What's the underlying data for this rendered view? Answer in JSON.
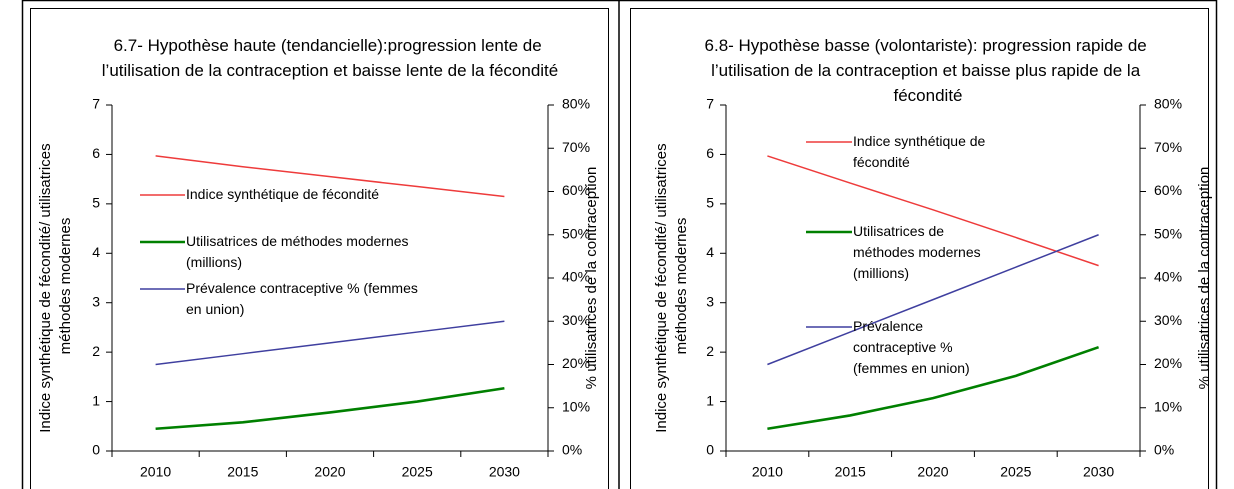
{
  "chart_data": [
    {
      "type": "line",
      "title": "6.7- Hypothèse haute (tendancielle):progression lente de l’utilisation de la contraception et baisse lente de la fécondité",
      "y_label": "Indice synthétique de fécondité/ utilisatrices méthodes modernes",
      "y2_label": "% utilisatrices de la contraception",
      "categories": [
        "2010",
        "2015",
        "2020",
        "2025",
        "2030"
      ],
      "ylim": [
        0,
        7
      ],
      "yticks": [
        0,
        1,
        2,
        3,
        4,
        5,
        6,
        7
      ],
      "y2lim": [
        0,
        80
      ],
      "y2ticks": [
        {
          "value": 0,
          "label": "0%"
        },
        {
          "value": 10,
          "label": "10%"
        },
        {
          "value": 20,
          "label": "20%"
        },
        {
          "value": 30,
          "label": "30%"
        },
        {
          "value": 40,
          "label": "40%"
        },
        {
          "value": 50,
          "label": "50%"
        },
        {
          "value": 60,
          "label": "60%"
        },
        {
          "value": 70,
          "label": "70%"
        },
        {
          "value": 80,
          "label": "80%"
        }
      ],
      "series": [
        {
          "name": "Indice synthétique de fécondité",
          "color": "#ee3b3b",
          "values": [
            5.97,
            5.75,
            5.55,
            5.35,
            5.15
          ]
        },
        {
          "name": "Utilisatrices de méthodes modernes (millions)",
          "color": "#008000",
          "values": [
            0.45,
            0.58,
            0.78,
            1.0,
            1.27
          ]
        },
        {
          "name": "Prévalence contraceptive % (femmes en union)",
          "color": "#3f3f9f",
          "axis": "y2",
          "values": [
            20,
            22.5,
            25,
            27.5,
            30
          ]
        }
      ]
    },
    {
      "type": "line",
      "title": "6.8- Hypothèse basse (volontariste): progression rapide de l’utilisation de la contraception et baisse plus rapide de la fécondité",
      "y_label": "Indice synthétique de fécondité/ utilisatrices méthodes modernes",
      "y2_label": "% utilisatrices de la contraception",
      "categories": [
        "2010",
        "2015",
        "2020",
        "2025",
        "2030"
      ],
      "ylim": [
        0,
        7
      ],
      "yticks": [
        0,
        1,
        2,
        3,
        4,
        5,
        6,
        7
      ],
      "y2lim": [
        0,
        80
      ],
      "y2ticks": [
        {
          "value": 0,
          "label": "0%"
        },
        {
          "value": 10,
          "label": "10%"
        },
        {
          "value": 20,
          "label": "20%"
        },
        {
          "value": 30,
          "label": "30%"
        },
        {
          "value": 40,
          "label": "40%"
        },
        {
          "value": 50,
          "label": "50%"
        },
        {
          "value": 60,
          "label": "60%"
        },
        {
          "value": 70,
          "label": "70%"
        },
        {
          "value": 80,
          "label": "80%"
        }
      ],
      "series": [
        {
          "name": "Indice synthétique de fécondité",
          "color": "#ee3b3b",
          "values": [
            5.97,
            5.42,
            4.88,
            4.32,
            3.75
          ]
        },
        {
          "name": "Utilisatrices de méthodes modernes (millions)",
          "color": "#008000",
          "values": [
            0.45,
            0.72,
            1.07,
            1.52,
            2.1
          ]
        },
        {
          "name": "Prévalence contraceptive % (femmes en union)",
          "color": "#3f3f9f",
          "axis": "y2",
          "values": [
            20,
            27.5,
            35,
            42.5,
            50
          ]
        }
      ]
    }
  ]
}
